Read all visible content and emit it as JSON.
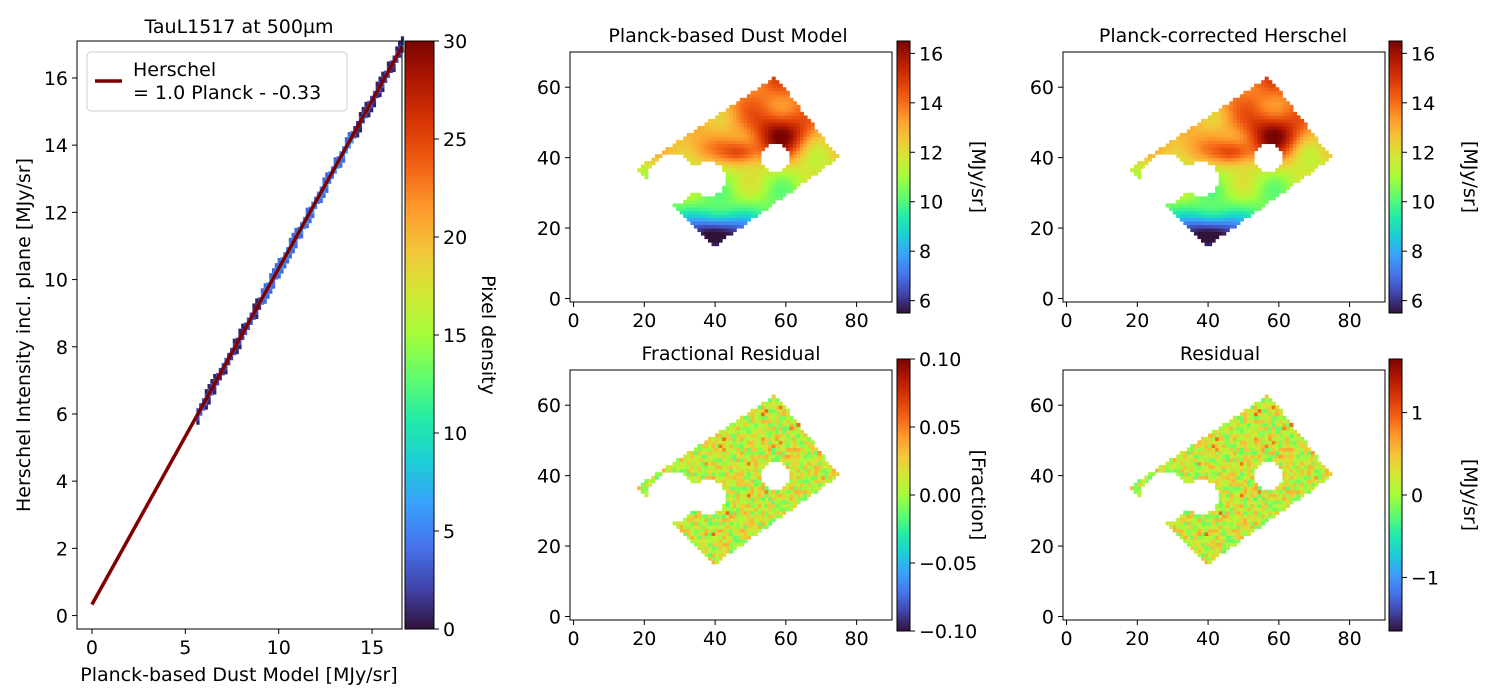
{
  "colors": {
    "turbo": [
      "#30123b",
      "#4145ab",
      "#4675ed",
      "#39a2fc",
      "#1bcfd4",
      "#24eca6",
      "#61fc6c",
      "#a4fc3b",
      "#d1e834",
      "#f3c63a",
      "#fe9b2d",
      "#f36315",
      "#d93806",
      "#b11901",
      "#7a0402"
    ],
    "fit_line": "#800000",
    "frame": "#000000"
  },
  "chart_data": [
    {
      "type": "heatmap",
      "subtype": "2d-histogram-with-fit",
      "title": "TauL1517 at 500µm",
      "xlabel": "Planck-based Dust Model [MJy/sr]",
      "ylabel": "Herschel Intensity incl. plane [MJy/sr]",
      "xlim": [
        -0.8,
        16.6
      ],
      "ylim": [
        -0.4,
        17.1
      ],
      "xticks": [
        0,
        5,
        10,
        15
      ],
      "yticks": [
        0,
        2,
        4,
        6,
        8,
        10,
        12,
        14,
        16
      ],
      "legend": {
        "position": "top-left",
        "entries": [
          "Herschel\n= 1.0 Planck - -0.33"
        ]
      },
      "fit": {
        "slope": 1.0,
        "intercept": 0.33,
        "x_range": [
          0,
          16.6
        ]
      },
      "data_x_range": [
        5.6,
        16.6
      ],
      "colorbar": {
        "label": "Pixel density",
        "range": [
          0,
          30
        ],
        "ticks": [
          0,
          5,
          10,
          15,
          20,
          25,
          30
        ]
      }
    },
    {
      "type": "heatmap",
      "title": "Planck-based Dust Model",
      "xlim": [
        -1,
        90
      ],
      "ylim": [
        -1,
        70
      ],
      "xticks": [
        0,
        20,
        40,
        60,
        80
      ],
      "yticks": [
        0,
        20,
        40,
        60
      ],
      "colorbar": {
        "label": "[MJy/sr]",
        "range": [
          5.5,
          16.5
        ],
        "ticks": [
          6,
          8,
          10,
          12,
          14,
          16
        ]
      },
      "field": "smooth"
    },
    {
      "type": "heatmap",
      "title": "Planck-corrected Herschel",
      "xlim": [
        -1,
        90
      ],
      "ylim": [
        -1,
        70
      ],
      "xticks": [
        0,
        20,
        40,
        60,
        80
      ],
      "yticks": [
        0,
        20,
        40,
        60
      ],
      "colorbar": {
        "label": "[MJy/sr]",
        "range": [
          5.5,
          16.5
        ],
        "ticks": [
          6,
          8,
          10,
          12,
          14,
          16
        ]
      },
      "field": "smooth"
    },
    {
      "type": "heatmap",
      "title": "Fractional Residual",
      "xlim": [
        -1,
        90
      ],
      "ylim": [
        -1,
        70
      ],
      "xticks": [
        0,
        20,
        40,
        60,
        80
      ],
      "yticks": [
        0,
        20,
        40,
        60
      ],
      "colorbar": {
        "label": "[Fraction]",
        "range": [
          -0.1,
          0.1
        ],
        "ticks": [
          -0.1,
          -0.05,
          0.0,
          0.05,
          0.1
        ],
        "tick_labels": [
          "−0.10",
          "−0.05",
          "0.00",
          "0.05",
          "0.10"
        ]
      },
      "field": "residual"
    },
    {
      "type": "heatmap",
      "title": "Residual",
      "xlim": [
        -1,
        90
      ],
      "ylim": [
        -1,
        70
      ],
      "xticks": [
        0,
        20,
        40,
        60,
        80
      ],
      "yticks": [
        0,
        20,
        40,
        60
      ],
      "colorbar": {
        "label": "[MJy/sr]",
        "range": [
          -1.65,
          1.65
        ],
        "ticks": [
          -1,
          0,
          1
        ],
        "tick_labels": [
          "−1",
          "0",
          "1"
        ]
      },
      "field": "residual"
    }
  ],
  "map_region": {
    "corners": [
      [
        18,
        37
      ],
      [
        57,
        63
      ],
      [
        75,
        40
      ],
      [
        40,
        15
      ]
    ],
    "holes": [
      {
        "center": [
          28,
          34
        ],
        "radius": 7
      },
      {
        "center": [
          38,
          34
        ],
        "radius": 5
      },
      {
        "center": [
          57,
          40
        ],
        "radius": 4
      }
    ]
  }
}
